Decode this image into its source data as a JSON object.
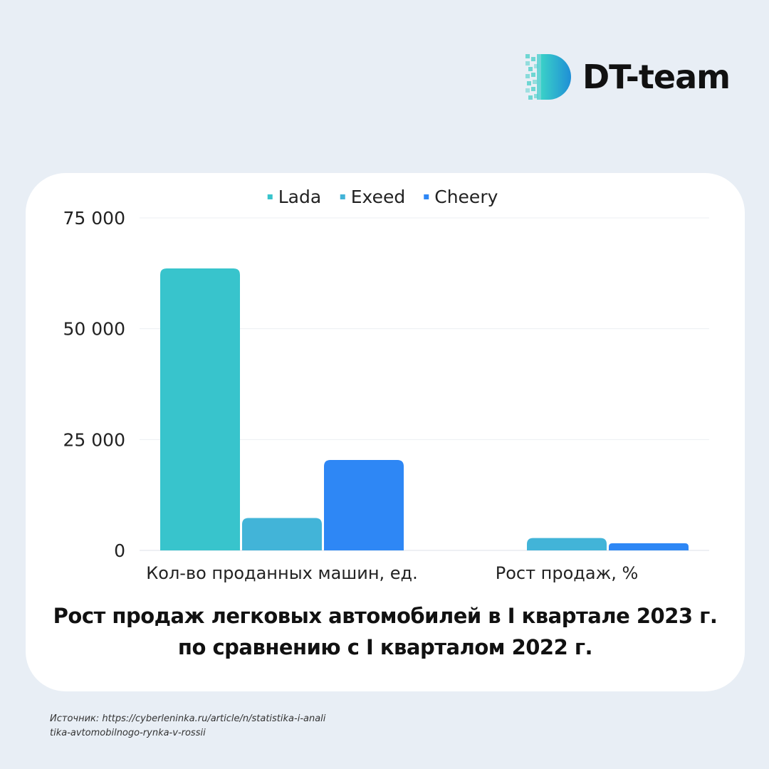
{
  "brand": {
    "name": "DT-team",
    "logo_icon": "dt-logo-icon",
    "colors": {
      "gradient_start": "#3ad0c8",
      "gradient_end": "#1f8fd6"
    }
  },
  "chart_data": {
    "type": "bar",
    "title_lines": [
      "Рост  продаж легковых автомобилей в I квартале 2023 г.",
      "по сравнению с I кварталом 2022 г."
    ],
    "xlabel": "",
    "ylabel": "",
    "categories": [
      "Кол-во проданных машин, ед.",
      "Рост продаж, %"
    ],
    "series": [
      {
        "name": "Lada",
        "color": "#38c4cc",
        "values": [
          63600,
          null
        ]
      },
      {
        "name": "Exeed",
        "color": "#42b4d8",
        "values": [
          7300,
          2800
        ]
      },
      {
        "name": "Cheery",
        "color": "#2e87f5",
        "values": [
          20400,
          1600
        ]
      }
    ],
    "ylim": [
      0,
      75000
    ],
    "yticks": [
      0,
      25000,
      50000,
      75000
    ],
    "ytick_labels": [
      "0",
      "25 000",
      "50 000",
      "75 000"
    ],
    "grid": true,
    "legend": "top-center"
  },
  "source": {
    "lines": [
      "Источник: https://cyberleninka.ru/article/n/statistika-i-anali",
      "tika-avtomobilnogo-rynka-v-rossii"
    ]
  }
}
